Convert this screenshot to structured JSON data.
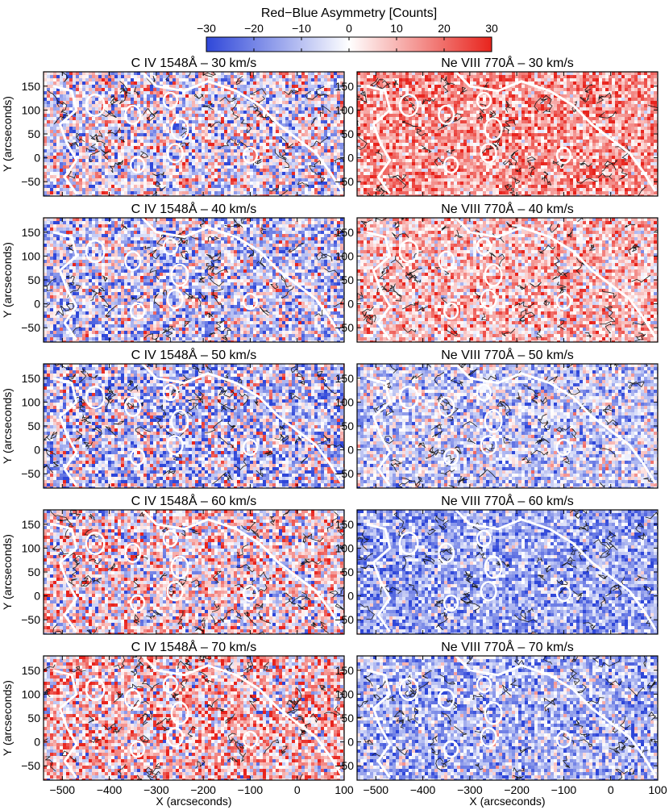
{
  "colorbar": {
    "title": "Red−Blue Asymmetry [Counts]",
    "ticks": [
      "−30",
      "−20",
      "−10",
      "0",
      "10",
      "20",
      "30"
    ],
    "range": [
      -30,
      30
    ],
    "colors": {
      "low": "#2f47d9",
      "mid": "#ffffff",
      "high": "#e8241d"
    }
  },
  "axes": {
    "xlabel": "X (arcseconds)",
    "ylabel": "Y (arcseconds)",
    "xticks": [
      "−500",
      "−400",
      "−300",
      "−200",
      "−100",
      "0",
      "100"
    ],
    "yticks": [
      "150",
      "100",
      "50",
      "0",
      "−50"
    ],
    "xlim": [
      -540,
      100
    ],
    "ylim": [
      -80,
      180
    ]
  },
  "chart_data": [
    {
      "type": "heatmap",
      "title": "C IV 1548Å – 30 km/s",
      "line": "C IV 1548Å",
      "velocity_kms": 30,
      "mean_counts": -2,
      "spread_counts": 15
    },
    {
      "type": "heatmap",
      "title": "Ne VIII 770Å – 30 km/s",
      "line": "Ne VIII 770Å",
      "velocity_kms": 30,
      "mean_counts": 14,
      "spread_counts": 10
    },
    {
      "type": "heatmap",
      "title": "C IV 1548Å – 40 km/s",
      "line": "C IV 1548Å",
      "velocity_kms": 40,
      "mean_counts": -6,
      "spread_counts": 15
    },
    {
      "type": "heatmap",
      "title": "Ne VIII 770Å – 40 km/s",
      "line": "Ne VIII 770Å",
      "velocity_kms": 40,
      "mean_counts": 8,
      "spread_counts": 11
    },
    {
      "type": "heatmap",
      "title": "C IV 1548Å – 50 km/s",
      "line": "C IV 1548Å",
      "velocity_kms": 50,
      "mean_counts": -7,
      "spread_counts": 16
    },
    {
      "type": "heatmap",
      "title": "Ne VIII 770Å – 50 km/s",
      "line": "Ne VIII 770Å",
      "velocity_kms": 50,
      "mean_counts": -7,
      "spread_counts": 11
    },
    {
      "type": "heatmap",
      "title": "C IV 1548Å – 60 km/s",
      "line": "C IV 1548Å",
      "velocity_kms": 60,
      "mean_counts": 2,
      "spread_counts": 15
    },
    {
      "type": "heatmap",
      "title": "Ne VIII 770Å – 60 km/s",
      "line": "Ne VIII 770Å",
      "velocity_kms": 60,
      "mean_counts": -14,
      "spread_counts": 10
    },
    {
      "type": "heatmap",
      "title": "C IV 1548Å – 70 km/s",
      "line": "C IV 1548Å",
      "velocity_kms": 70,
      "mean_counts": 7,
      "spread_counts": 15
    },
    {
      "type": "heatmap",
      "title": "Ne VIII 770Å – 70 km/s",
      "line": "Ne VIII 770Å",
      "velocity_kms": 70,
      "mean_counts": -11,
      "spread_counts": 11
    }
  ]
}
